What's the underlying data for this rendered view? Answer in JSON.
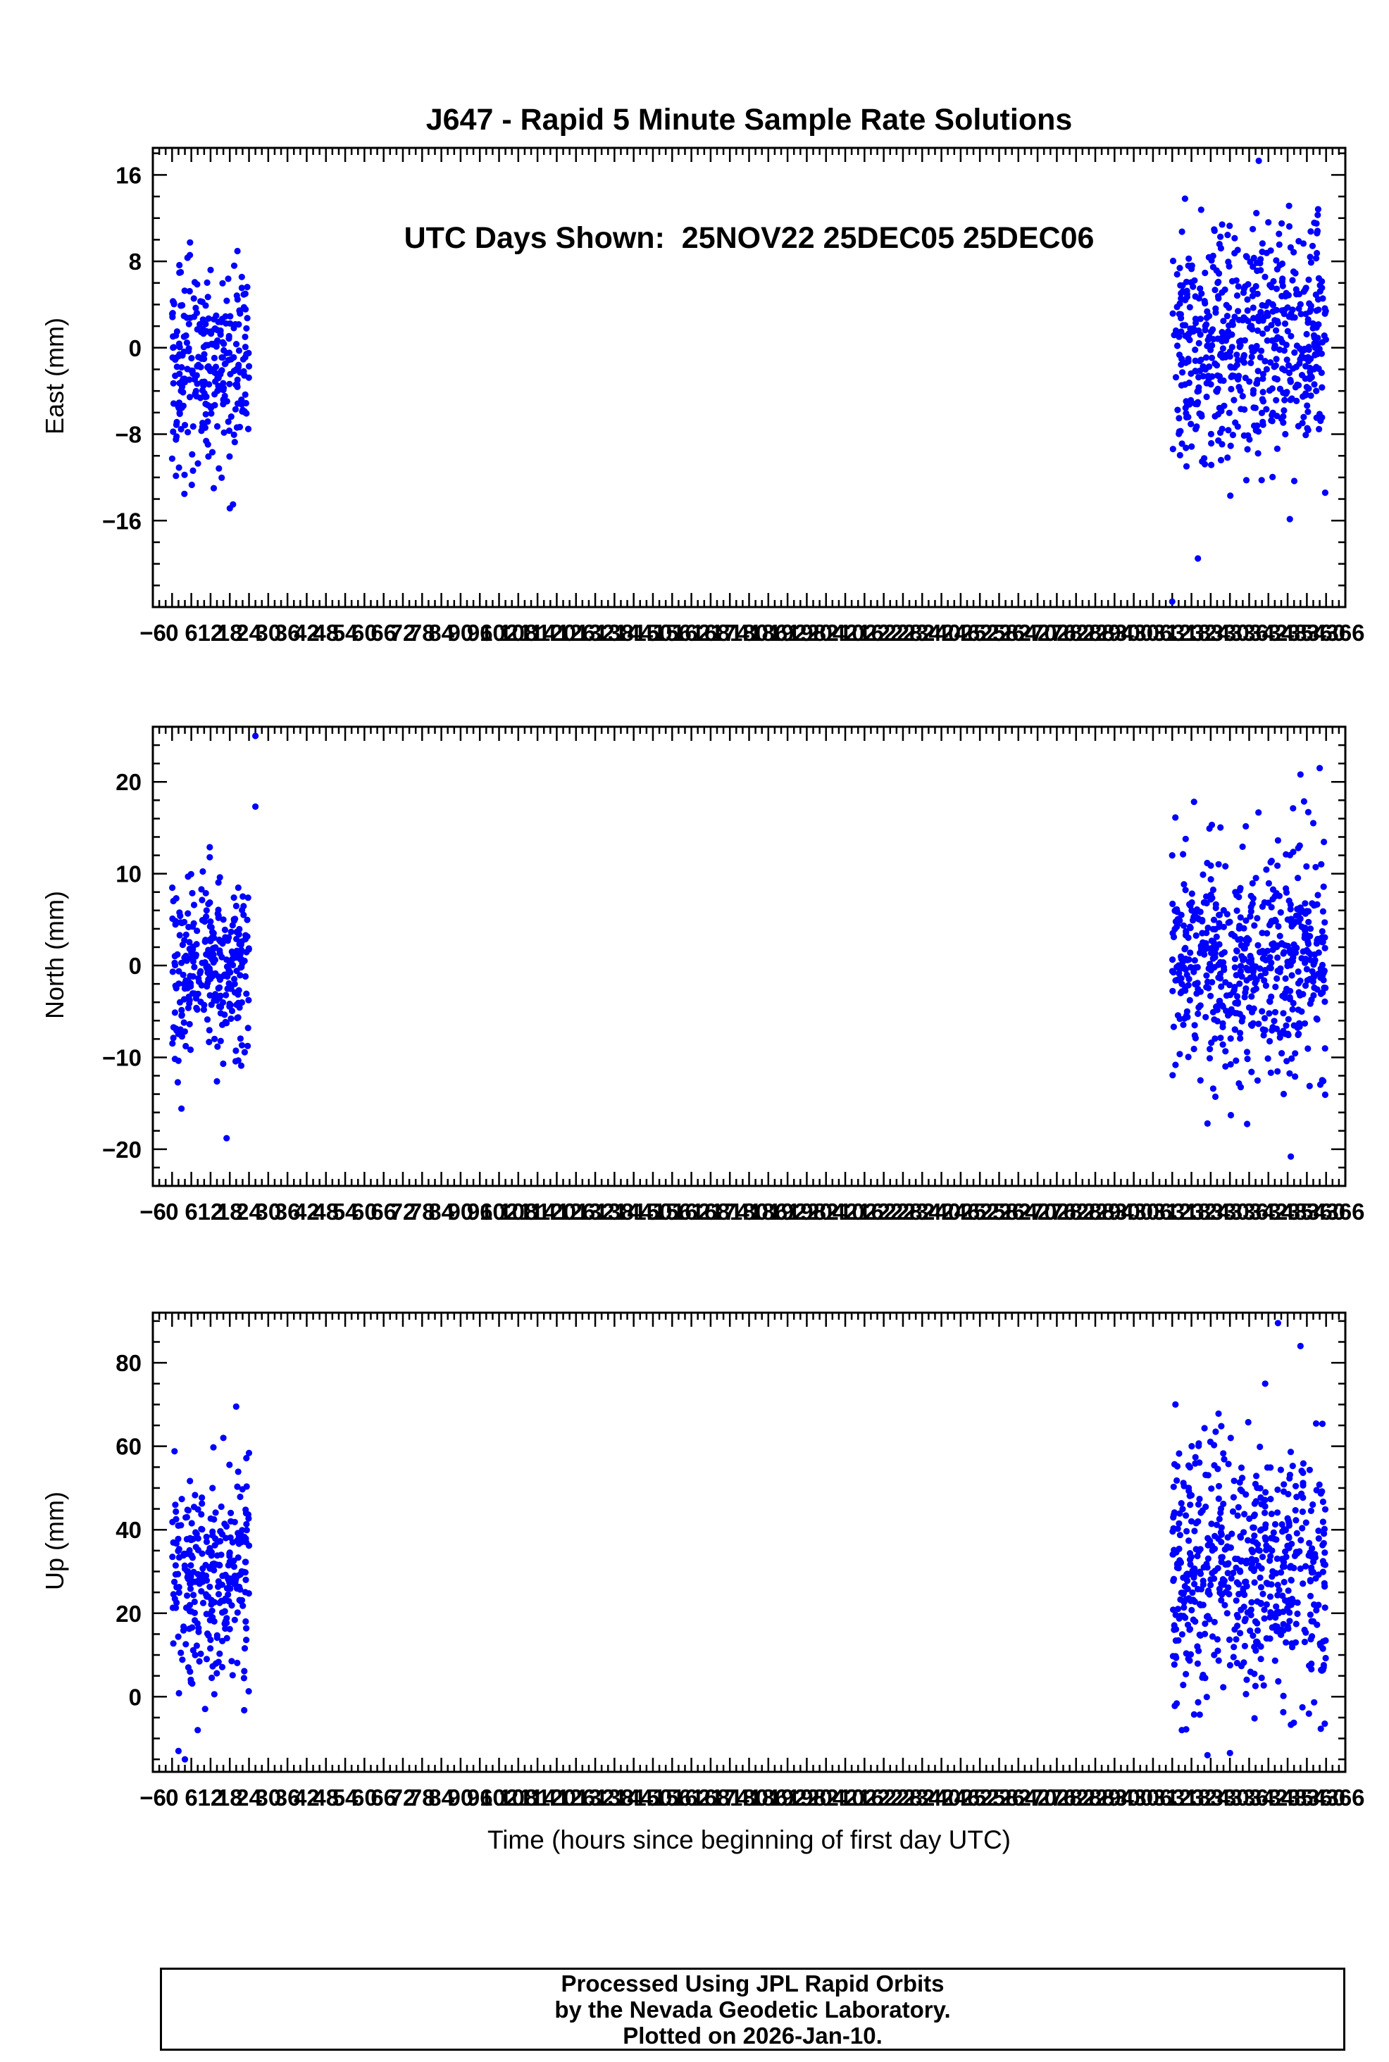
{
  "title": {
    "line1": "J647 - Rapid 5 Minute Sample Rate Solutions",
    "line2": "UTC Days Shown:  25NOV22 25DEC05 25DEC06"
  },
  "xlabel": "Time (hours since beginning of first day UTC)",
  "footer": {
    "line1": "Processed Using JPL Rapid Orbits",
    "line2": "by the Nevada Geodetic Laboratory.",
    "line3": "Plotted on 2026-Jan-10."
  },
  "colors": {
    "point": "#0000ff",
    "axis": "#000000",
    "background": "#ffffff"
  },
  "chart_data": [
    {
      "type": "scatter",
      "ylabel": "East (mm)",
      "xlim": [
        -6,
        366
      ],
      "ylim": [
        -24,
        18.5
      ],
      "yticks": [
        -16,
        -8,
        0,
        8,
        16
      ],
      "yminor": 2,
      "xmajor": 6,
      "xminor": 2,
      "grid": false,
      "legend": "none",
      "seed": 11,
      "clusters": [
        {
          "x_start": 0,
          "x_end": 24,
          "count": 288,
          "y_mean": -1.5,
          "y_sd": 4.5,
          "y_min": -15,
          "y_max": 11
        },
        {
          "x_start": 312,
          "x_end": 360,
          "count": 576,
          "y_mean": 0.5,
          "y_sd": 5.5,
          "y_min": -20,
          "y_max": 15
        }
      ],
      "outliers": [
        [
          19,
          -14.5
        ],
        [
          13,
          -13
        ],
        [
          316,
          13.8
        ],
        [
          339,
          17.3
        ],
        [
          312,
          -23.5
        ],
        [
          357,
          11.5
        ],
        [
          320,
          -19.5
        ]
      ]
    },
    {
      "type": "scatter",
      "ylabel": "North (mm)",
      "xlim": [
        -6,
        366
      ],
      "ylim": [
        -24,
        26
      ],
      "yticks": [
        -20,
        -10,
        0,
        10,
        20
      ],
      "yminor": 2,
      "xmajor": 6,
      "xminor": 2,
      "grid": false,
      "legend": "none",
      "seed": 22,
      "clusters": [
        {
          "x_start": 0,
          "x_end": 24,
          "count": 288,
          "y_mean": 0,
          "y_sd": 5,
          "y_min": -16,
          "y_max": 14
        },
        {
          "x_start": 312,
          "x_end": 360,
          "count": 576,
          "y_mean": 0,
          "y_sd": 6,
          "y_min": -19,
          "y_max": 18
        }
      ],
      "outliers": [
        [
          26,
          25
        ],
        [
          26,
          17.3
        ],
        [
          17,
          -18.8
        ],
        [
          349,
          -20.8
        ],
        [
          358,
          21.5
        ],
        [
          352,
          20.8
        ],
        [
          356,
          15.5
        ],
        [
          312,
          12
        ]
      ]
    },
    {
      "type": "scatter",
      "ylabel": "Up (mm)",
      "xlim": [
        -6,
        366
      ],
      "ylim": [
        -18,
        92
      ],
      "yticks": [
        0,
        20,
        40,
        60,
        80
      ],
      "yminor": 5,
      "xmajor": 6,
      "xminor": 2,
      "grid": false,
      "legend": "none",
      "seed": 33,
      "clusters": [
        {
          "x_start": 0,
          "x_end": 24,
          "count": 288,
          "y_mean": 30,
          "y_sd": 13,
          "y_min": -5,
          "y_max": 60
        },
        {
          "x_start": 312,
          "x_end": 360,
          "count": 576,
          "y_mean": 30,
          "y_sd": 15,
          "y_min": -10,
          "y_max": 72
        }
      ],
      "outliers": [
        [
          20,
          69.5
        ],
        [
          16,
          62
        ],
        [
          2,
          -13
        ],
        [
          4,
          -15
        ],
        [
          8,
          -8
        ],
        [
          313,
          70
        ],
        [
          345,
          89.5
        ],
        [
          352,
          84
        ],
        [
          341,
          75
        ],
        [
          330,
          -13.5
        ],
        [
          315,
          -8
        ],
        [
          323,
          -14
        ]
      ]
    }
  ]
}
